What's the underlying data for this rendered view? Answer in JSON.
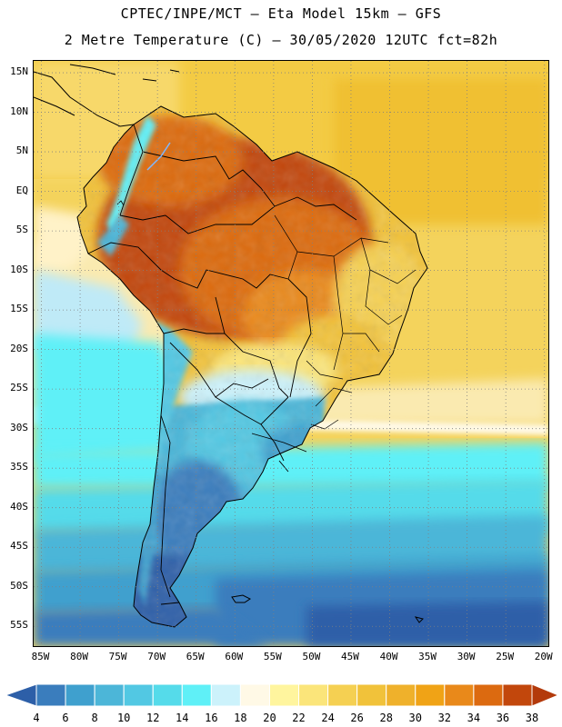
{
  "header": {
    "line1": "CPTEC/INPE/MCT –  Eta Model 15km – GFS",
    "line2": "2 Metre Temperature (C) – 30/05/2020 12UTC fct=82h"
  },
  "map": {
    "region": "South America",
    "lat_range": [
      -57.5,
      16.5
    ],
    "lon_range": [
      -86,
      -19.5
    ],
    "lat_labels": [
      {
        "label": "15N",
        "lat": 15
      },
      {
        "label": "10N",
        "lat": 10
      },
      {
        "label": "5N",
        "lat": 5
      },
      {
        "label": "EQ",
        "lat": 0
      },
      {
        "label": "5S",
        "lat": -5
      },
      {
        "label": "10S",
        "lat": -10
      },
      {
        "label": "15S",
        "lat": -15
      },
      {
        "label": "20S",
        "lat": -20
      },
      {
        "label": "25S",
        "lat": -25
      },
      {
        "label": "30S",
        "lat": -30
      },
      {
        "label": "35S",
        "lat": -35
      },
      {
        "label": "40S",
        "lat": -40
      },
      {
        "label": "45S",
        "lat": -45
      },
      {
        "label": "50S",
        "lat": -50
      },
      {
        "label": "55S",
        "lat": -55
      }
    ],
    "lon_labels": [
      {
        "label": "85W",
        "lon": -85
      },
      {
        "label": "80W",
        "lon": -80
      },
      {
        "label": "75W",
        "lon": -75
      },
      {
        "label": "70W",
        "lon": -70
      },
      {
        "label": "65W",
        "lon": -65
      },
      {
        "label": "60W",
        "lon": -60
      },
      {
        "label": "55W",
        "lon": -55
      },
      {
        "label": "50W",
        "lon": -50
      },
      {
        "label": "45W",
        "lon": -45
      },
      {
        "label": "40W",
        "lon": -40
      },
      {
        "label": "35W",
        "lon": -35
      },
      {
        "label": "30W",
        "lon": -30
      },
      {
        "label": "25W",
        "lon": -25
      },
      {
        "label": "20W",
        "lon": -20
      }
    ]
  },
  "colorbar": {
    "labels": [
      "4",
      "6",
      "8",
      "10",
      "12",
      "14",
      "16",
      "18",
      "20",
      "22",
      "24",
      "26",
      "28",
      "30",
      "32",
      "34",
      "36",
      "38"
    ],
    "colors": [
      "#2d5fa8",
      "#3a7dbd",
      "#3fa0ce",
      "#4cb6d8",
      "#52c8e3",
      "#55dbea",
      "#5ff0f7",
      "#ccf2fb",
      "#fff9e6",
      "#fff59e",
      "#fbe57a",
      "#f5d052",
      "#f1c23a",
      "#efb12b",
      "#f0a316",
      "#e9891a",
      "#dc6a10",
      "#c2470c",
      "#b33a0b"
    ]
  }
}
